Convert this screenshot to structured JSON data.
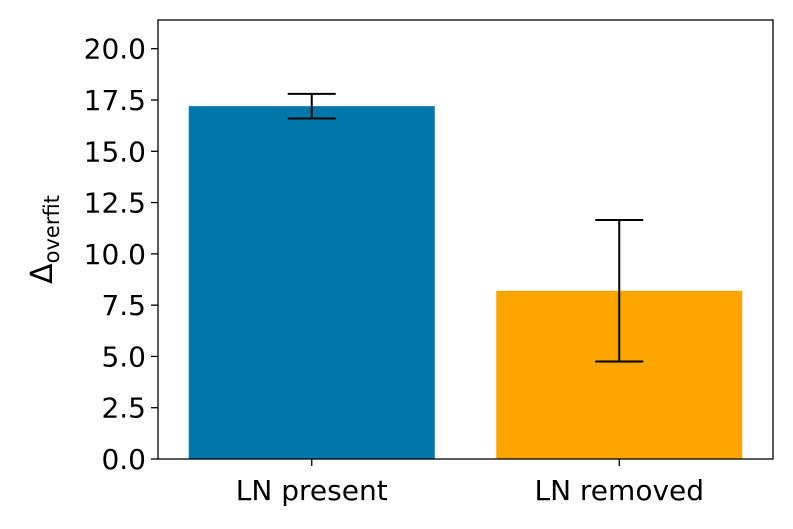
{
  "chart_data": {
    "type": "bar",
    "categories": [
      "LN present",
      "LN removed"
    ],
    "values": [
      17.2,
      8.2
    ],
    "error": [
      0.6,
      3.45
    ],
    "colors": [
      "#0077a8",
      "#ffa500"
    ],
    "title": "",
    "xlabel": "",
    "ylabel": {
      "main": "Δ",
      "sub": "overfit"
    },
    "ylim": [
      0,
      21.4
    ],
    "yticks": [
      "0.0",
      "2.5",
      "5.0",
      "7.5",
      "10.0",
      "12.5",
      "15.0",
      "17.5",
      "20.0"
    ],
    "grid": false
  }
}
